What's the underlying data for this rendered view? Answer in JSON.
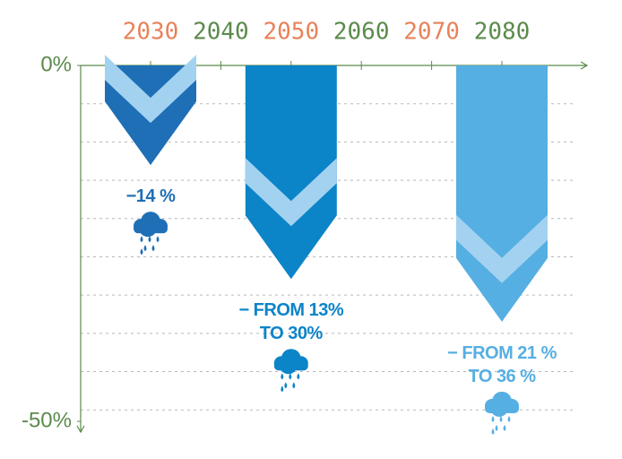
{
  "chart_data": {
    "type": "chevron",
    "categories": [
      "2030",
      "2040",
      "2050",
      "2060",
      "2070",
      "2080"
    ],
    "category_colors": [
      "#e8825a",
      "#5b8a4c",
      "#e8825a",
      "#5b8a4c",
      "#e8825a",
      "#5b8a4c"
    ],
    "values": [
      -14,
      null,
      -30,
      null,
      null,
      -36
    ],
    "low": [
      null,
      null,
      -13,
      null,
      null,
      -21
    ],
    "value_labels": [
      "−14 %",
      null,
      "− FROM 13% TO 30%",
      null,
      null,
      "− FROM 21 % TO 36 %"
    ],
    "colors": [
      "#1e6fb6",
      null,
      "#0c84c8",
      null,
      null,
      "#56afe2"
    ],
    "band_color": "#a3d2f1",
    "ylim": [
      0,
      -50
    ],
    "yticks": [
      {
        "value": 0,
        "label": "0%"
      },
      {
        "value": -50,
        "label": "-50%"
      }
    ],
    "ytick_color": "#5b8a4c"
  }
}
